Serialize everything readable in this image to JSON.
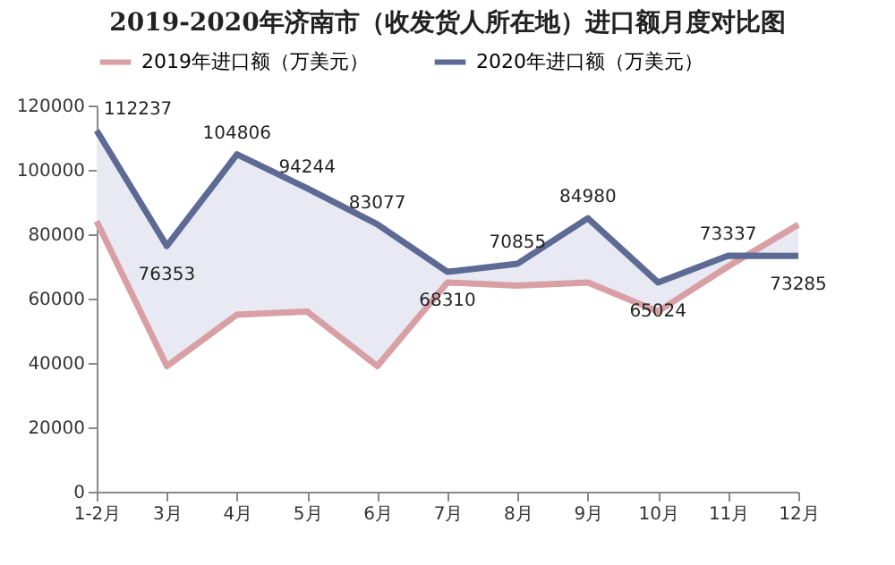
{
  "chart_data": {
    "type": "line",
    "title": "2019-2020年济南市（收发货人所在地）进口额月度对比图",
    "categories": [
      "1-2月",
      "3月",
      "4月",
      "5月",
      "6月",
      "7月",
      "8月",
      "9月",
      "10月",
      "11月",
      "12月"
    ],
    "series": [
      {
        "name": "2019年进口额（万美元）",
        "color": "#d8a0a4",
        "values": [
          84000,
          39000,
          55000,
          56000,
          39000,
          65000,
          64000,
          65000,
          56000,
          70000,
          83000
        ]
      },
      {
        "name": "2020年进口额（万美元）",
        "color": "#5d6a94",
        "values": [
          112237,
          76353,
          104806,
          94244,
          83077,
          68310,
          70855,
          84980,
          65024,
          73337,
          73285
        ],
        "value_labels": [
          "112237",
          "76353",
          "104806",
          "94244",
          "83077",
          "68310",
          "70855",
          "84980",
          "65024",
          "73337",
          "73285"
        ],
        "lower": [
          84000,
          39000,
          55000,
          56000,
          39000,
          65000,
          64000,
          65000,
          56000,
          70000,
          83000
        ],
        "upper": [
          112237,
          76353,
          104806,
          94244,
          83077,
          68310,
          70855,
          84980,
          65024,
          73337,
          73285
        ]
      }
    ],
    "ylim": [
      0,
      120000
    ],
    "yticks": [
      0,
      20000,
      40000,
      60000,
      80000,
      100000,
      120000
    ],
    "grid": false,
    "legend": "top",
    "marker": "none",
    "line_style": "solid"
  }
}
